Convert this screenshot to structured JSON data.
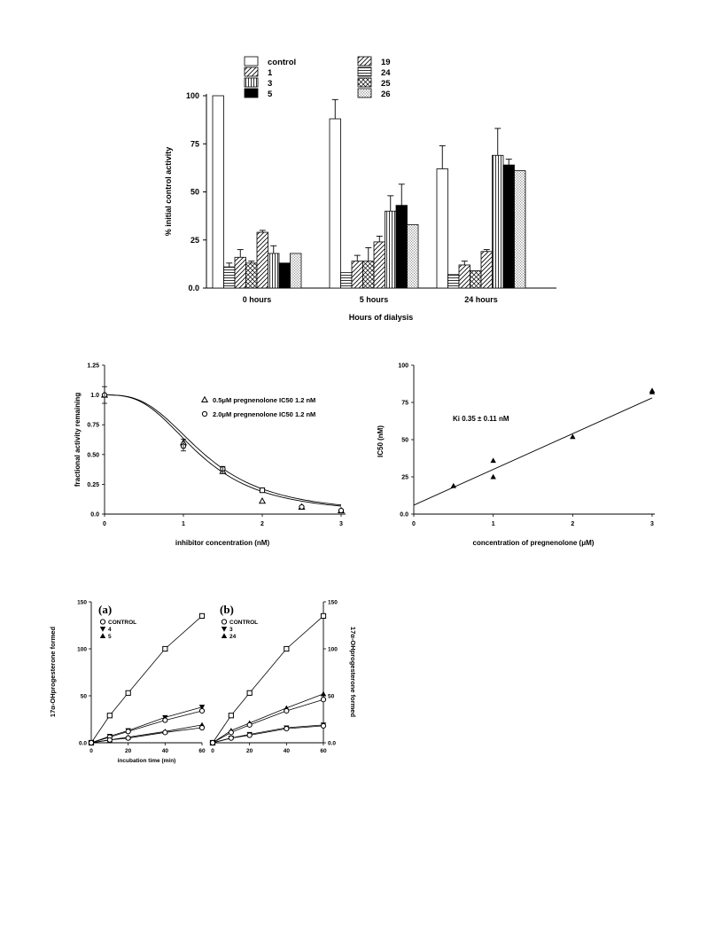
{
  "chart_data": [
    {
      "type": "bar",
      "groups": [
        "0 hours",
        "5 hours",
        "24 hours"
      ],
      "xlabel": "Hours of dialysis",
      "ylabel": "% initial control activity",
      "ylim": [
        0,
        100
      ],
      "yticks": [
        "0.0",
        "25",
        "50",
        "75",
        "100"
      ],
      "legend": [
        "control",
        "1",
        "3",
        "5",
        "19",
        "24",
        "25",
        "26"
      ],
      "series": [
        {
          "name": "control",
          "fill": "white",
          "values": [
            100,
            88,
            62
          ],
          "errors": [
            0,
            10,
            12
          ]
        },
        {
          "name": "24",
          "fill": "hlines",
          "values": [
            11,
            8,
            7
          ],
          "errors": [
            2,
            0,
            0
          ]
        },
        {
          "name": "1",
          "fill": "diag",
          "values": [
            16,
            14,
            12
          ],
          "errors": [
            4,
            3,
            2
          ]
        },
        {
          "name": "25",
          "fill": "xhatch",
          "values": [
            13,
            14,
            9
          ],
          "errors": [
            1,
            7,
            0
          ]
        },
        {
          "name": "19",
          "fill": "diag",
          "values": [
            29,
            24,
            19
          ],
          "errors": [
            1,
            3,
            1
          ]
        },
        {
          "name": "3",
          "fill": "vlines",
          "values": [
            18,
            40,
            69
          ],
          "errors": [
            4,
            8,
            14
          ]
        },
        {
          "name": "5",
          "fill": "black",
          "values": [
            13,
            43,
            64
          ],
          "errors": [
            0,
            11,
            3
          ]
        },
        {
          "name": "26",
          "fill": "dots",
          "values": [
            18,
            33,
            61
          ],
          "errors": [
            0,
            0,
            0
          ]
        }
      ]
    },
    {
      "type": "scatter",
      "xlabel": "inhibitor concentration (nM)",
      "ylabel": "fractional activity remaining",
      "xlim": [
        0,
        3
      ],
      "ylim": [
        0,
        1.25
      ],
      "xticks": [
        "0",
        "1",
        "2",
        "3"
      ],
      "yticks": [
        "0.0",
        "0.25",
        "0.50",
        "0.75",
        "1.0",
        "1.25"
      ],
      "legend": [
        {
          "marker": "triangle",
          "text": "0.5μM pregnenolone  IC50 1.2 nM"
        },
        {
          "marker": "circle",
          "text": "2.0μM pregnenolone  IC50 1.2 nM"
        }
      ],
      "series": [
        {
          "name": "0.5μM pregnenolone",
          "x": [
            0,
            1,
            1.5,
            2,
            2.5,
            3
          ],
          "y": [
            1.0,
            0.6,
            0.36,
            0.11,
            0.06,
            0.03
          ]
        },
        {
          "name": "2.0μM pregnenolone",
          "x": [
            0,
            1,
            1.5,
            2,
            2.5,
            3
          ],
          "y": [
            1.0,
            0.57,
            0.38,
            0.2,
            0.06,
            0.03
          ]
        }
      ]
    },
    {
      "type": "scatter",
      "xlabel": "concentration of pregnenolone (μM)",
      "ylabel": "IC50 (nM)",
      "xlim": [
        0,
        3
      ],
      "ylim": [
        0,
        100
      ],
      "xticks": [
        "0",
        "1",
        "2",
        "3"
      ],
      "yticks": [
        "0.0",
        "25",
        "50",
        "75",
        "100"
      ],
      "annotation": "Ki 0.35 ± 0.11 nM",
      "points": {
        "x": [
          0.5,
          1,
          1,
          2,
          3,
          3
        ],
        "y": [
          19,
          36,
          25,
          52,
          82,
          83
        ]
      },
      "fit_line": {
        "intercept": 6,
        "slope": 24
      }
    },
    {
      "type": "line",
      "panel": "(a)",
      "xlabel": "incubation time (min)",
      "ylabel": "17α-OHprogesterone formed",
      "xlim": [
        0,
        60
      ],
      "ylim": [
        0,
        150
      ],
      "xticks": [
        "0",
        "20",
        "40",
        "60"
      ],
      "yticks": [
        "0.0",
        "50",
        "100",
        "150"
      ],
      "legend": [
        "CONTROL",
        "4",
        "5"
      ],
      "x": [
        0,
        10,
        20,
        40,
        60
      ],
      "series": [
        {
          "name": "CONTROL",
          "marker": "square",
          "values": [
            0,
            29,
            53,
            100,
            135
          ]
        },
        {
          "name": "4",
          "marker": "tri-down",
          "values": [
            0,
            7,
            13,
            27,
            38
          ]
        },
        {
          "name": "4",
          "marker": "circle",
          "values": [
            0,
            6,
            12,
            24,
            34
          ]
        },
        {
          "name": "5",
          "marker": "tri-up",
          "values": [
            0,
            3,
            6,
            12,
            19
          ]
        },
        {
          "name": "5",
          "marker": "circle",
          "values": [
            0,
            3,
            5,
            11,
            16
          ]
        }
      ]
    },
    {
      "type": "line",
      "panel": "(b)",
      "xlabel": "",
      "ylabel": "17α-OHprogesterone formed",
      "xlim": [
        0,
        60
      ],
      "ylim": [
        0,
        150
      ],
      "xticks": [
        "0",
        "20",
        "40",
        "60"
      ],
      "yticks": [
        "0.0",
        "50",
        "100",
        "150"
      ],
      "legend": [
        "CONTROL",
        "3",
        "24"
      ],
      "x": [
        0,
        10,
        20,
        40,
        60
      ],
      "series": [
        {
          "name": "CONTROL",
          "marker": "square",
          "values": [
            0,
            29,
            53,
            100,
            135
          ]
        },
        {
          "name": "24",
          "marker": "tri-up",
          "values": [
            0,
            13,
            21,
            37,
            52
          ]
        },
        {
          "name": "24",
          "marker": "circle",
          "values": [
            0,
            11,
            19,
            34,
            46
          ]
        },
        {
          "name": "3",
          "marker": "tri-down",
          "values": [
            0,
            5,
            9,
            16,
            19
          ]
        },
        {
          "name": "3",
          "marker": "circle",
          "values": [
            0,
            5,
            8,
            15,
            18
          ]
        }
      ]
    }
  ]
}
